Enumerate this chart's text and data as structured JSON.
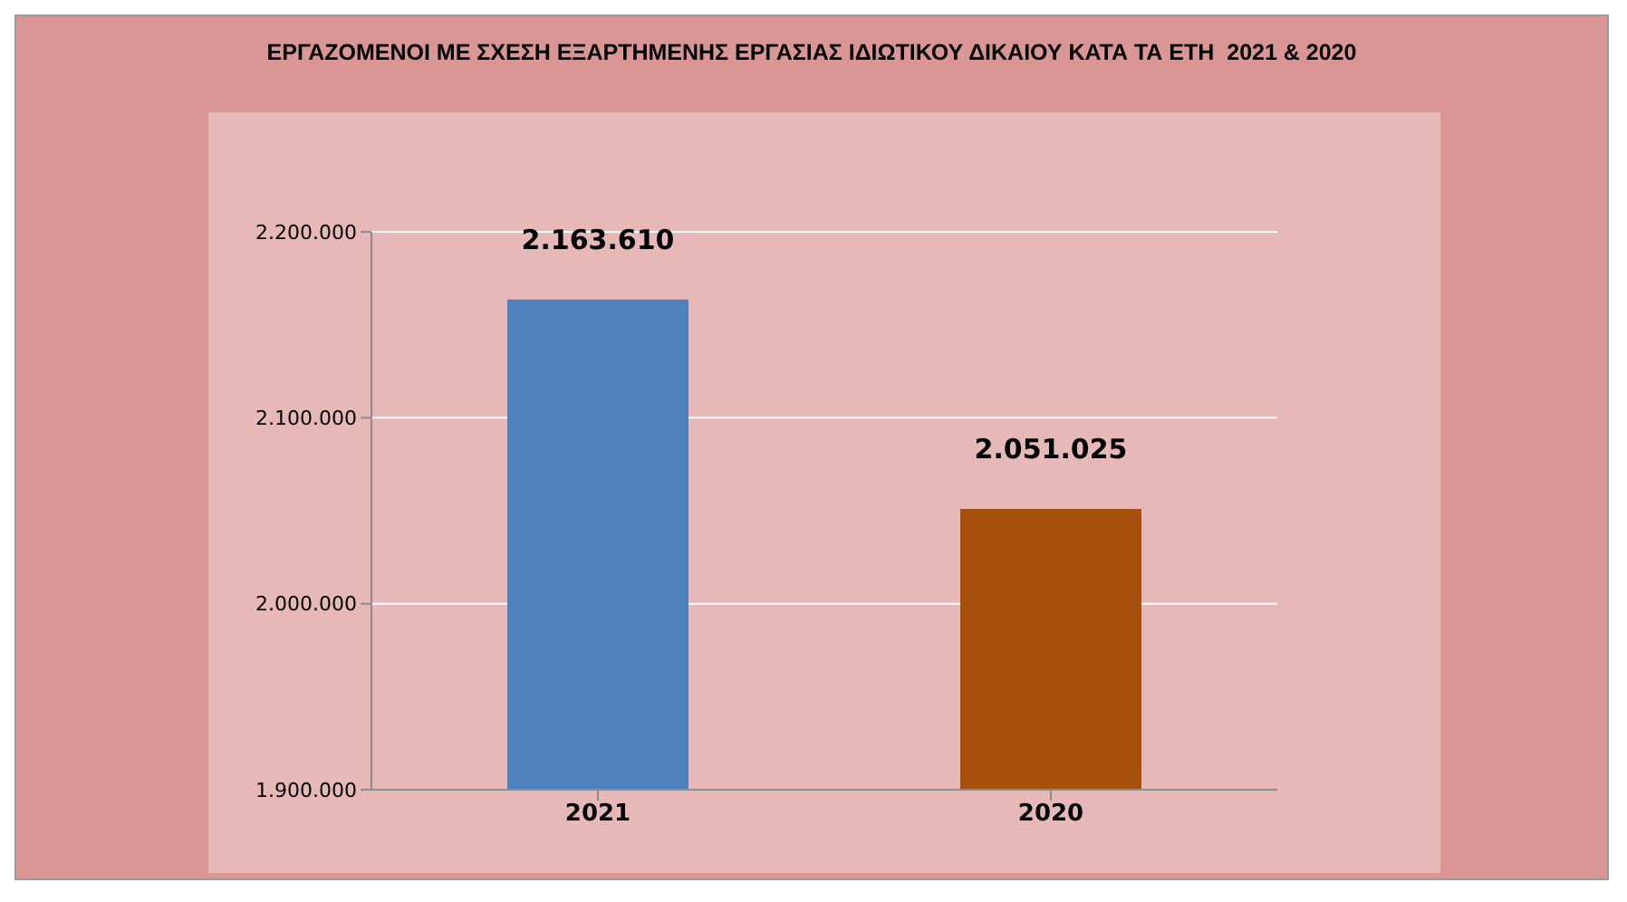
{
  "chart_data": {
    "type": "bar",
    "title": "ΕΡΓΑΖΟΜΕΝΟΙ ΜΕ ΣΧΕΣΗ ΕΞΑΡΤΗΜΕΝΗΣ ΕΡΓΑΣΙΑΣ ΙΔΙΩΤΙΚΟΥ ΔΙΚΑΙΟΥ ΚΑΤΑ ΤΑ ΕΤΗ  2021 & 2020",
    "categories": [
      "2021",
      "2020"
    ],
    "values": [
      2163610,
      2051025
    ],
    "colors": [
      "#4f81bd",
      "#a5500d"
    ],
    "value_labels": [
      "2.163.610",
      "2.051.025"
    ],
    "ylim": [
      1900000,
      2200000
    ],
    "yticks": [
      {
        "value": 1900000,
        "label": "1.900.000"
      },
      {
        "value": 2000000,
        "label": "2.000.000"
      },
      {
        "value": 2100000,
        "label": "2.100.000"
      },
      {
        "value": 2200000,
        "label": "2.200.000"
      }
    ],
    "grid": "y"
  }
}
